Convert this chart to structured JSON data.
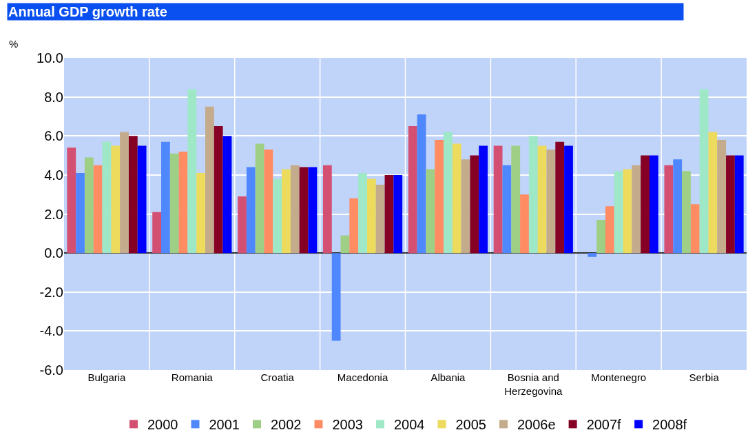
{
  "chart_data": {
    "type": "bar",
    "title": "Annual GDP growth rate",
    "ylabel": "%",
    "categories": [
      "Bulgaria",
      "Romania",
      "Croatia",
      "Macedonia",
      "Albania",
      "Bosnia and Herzegovina",
      "Montenegro",
      "Serbia"
    ],
    "series": [
      {
        "name": "2000",
        "color": "#d45073",
        "values": [
          5.4,
          2.1,
          2.9,
          4.5,
          6.5,
          5.5,
          null,
          4.5
        ]
      },
      {
        "name": "2001",
        "color": "#4f87ff",
        "values": [
          4.1,
          5.7,
          4.4,
          -4.5,
          7.1,
          4.5,
          -0.2,
          4.8
        ]
      },
      {
        "name": "2002",
        "color": "#9ecf85",
        "values": [
          4.9,
          5.1,
          5.6,
          0.9,
          4.3,
          5.5,
          1.7,
          4.2
        ]
      },
      {
        "name": "2003",
        "color": "#ff8c62",
        "values": [
          4.5,
          5.2,
          5.3,
          2.8,
          5.8,
          3.0,
          2.4,
          2.5
        ]
      },
      {
        "name": "2004",
        "color": "#9ee8c8",
        "values": [
          5.7,
          8.4,
          3.8,
          4.1,
          6.2,
          6.0,
          4.2,
          8.4
        ]
      },
      {
        "name": "2005",
        "color": "#ecdb5c",
        "values": [
          5.5,
          4.1,
          4.3,
          3.8,
          5.6,
          5.5,
          4.3,
          6.2
        ]
      },
      {
        "name": "2006e",
        "color": "#c3ab8c",
        "values": [
          6.2,
          7.5,
          4.5,
          3.5,
          4.8,
          5.3,
          4.5,
          5.8
        ]
      },
      {
        "name": "2007f",
        "color": "#850024",
        "values": [
          6.0,
          6.5,
          4.4,
          4.0,
          5.0,
          5.7,
          5.0,
          5.0
        ]
      },
      {
        "name": "2008f",
        "color": "#0000ff",
        "values": [
          5.5,
          6.0,
          4.4,
          4.0,
          5.5,
          5.5,
          5.0,
          5.0
        ]
      }
    ],
    "ylim": [
      -6,
      10
    ],
    "yticks": [
      {
        "value": -6,
        "label": "-6.0"
      },
      {
        "value": -4,
        "label": "-4.0"
      },
      {
        "value": -2,
        "label": "-2.0"
      },
      {
        "value": 0,
        "label": "0.0"
      },
      {
        "value": 2,
        "label": "2.0"
      },
      {
        "value": 4,
        "label": "4.0"
      },
      {
        "value": 6,
        "label": "6.0"
      },
      {
        "value": 8,
        "label": "8.0"
      },
      {
        "value": 10,
        "label": "10.0"
      }
    ],
    "grid": true,
    "legend": "bottom"
  }
}
